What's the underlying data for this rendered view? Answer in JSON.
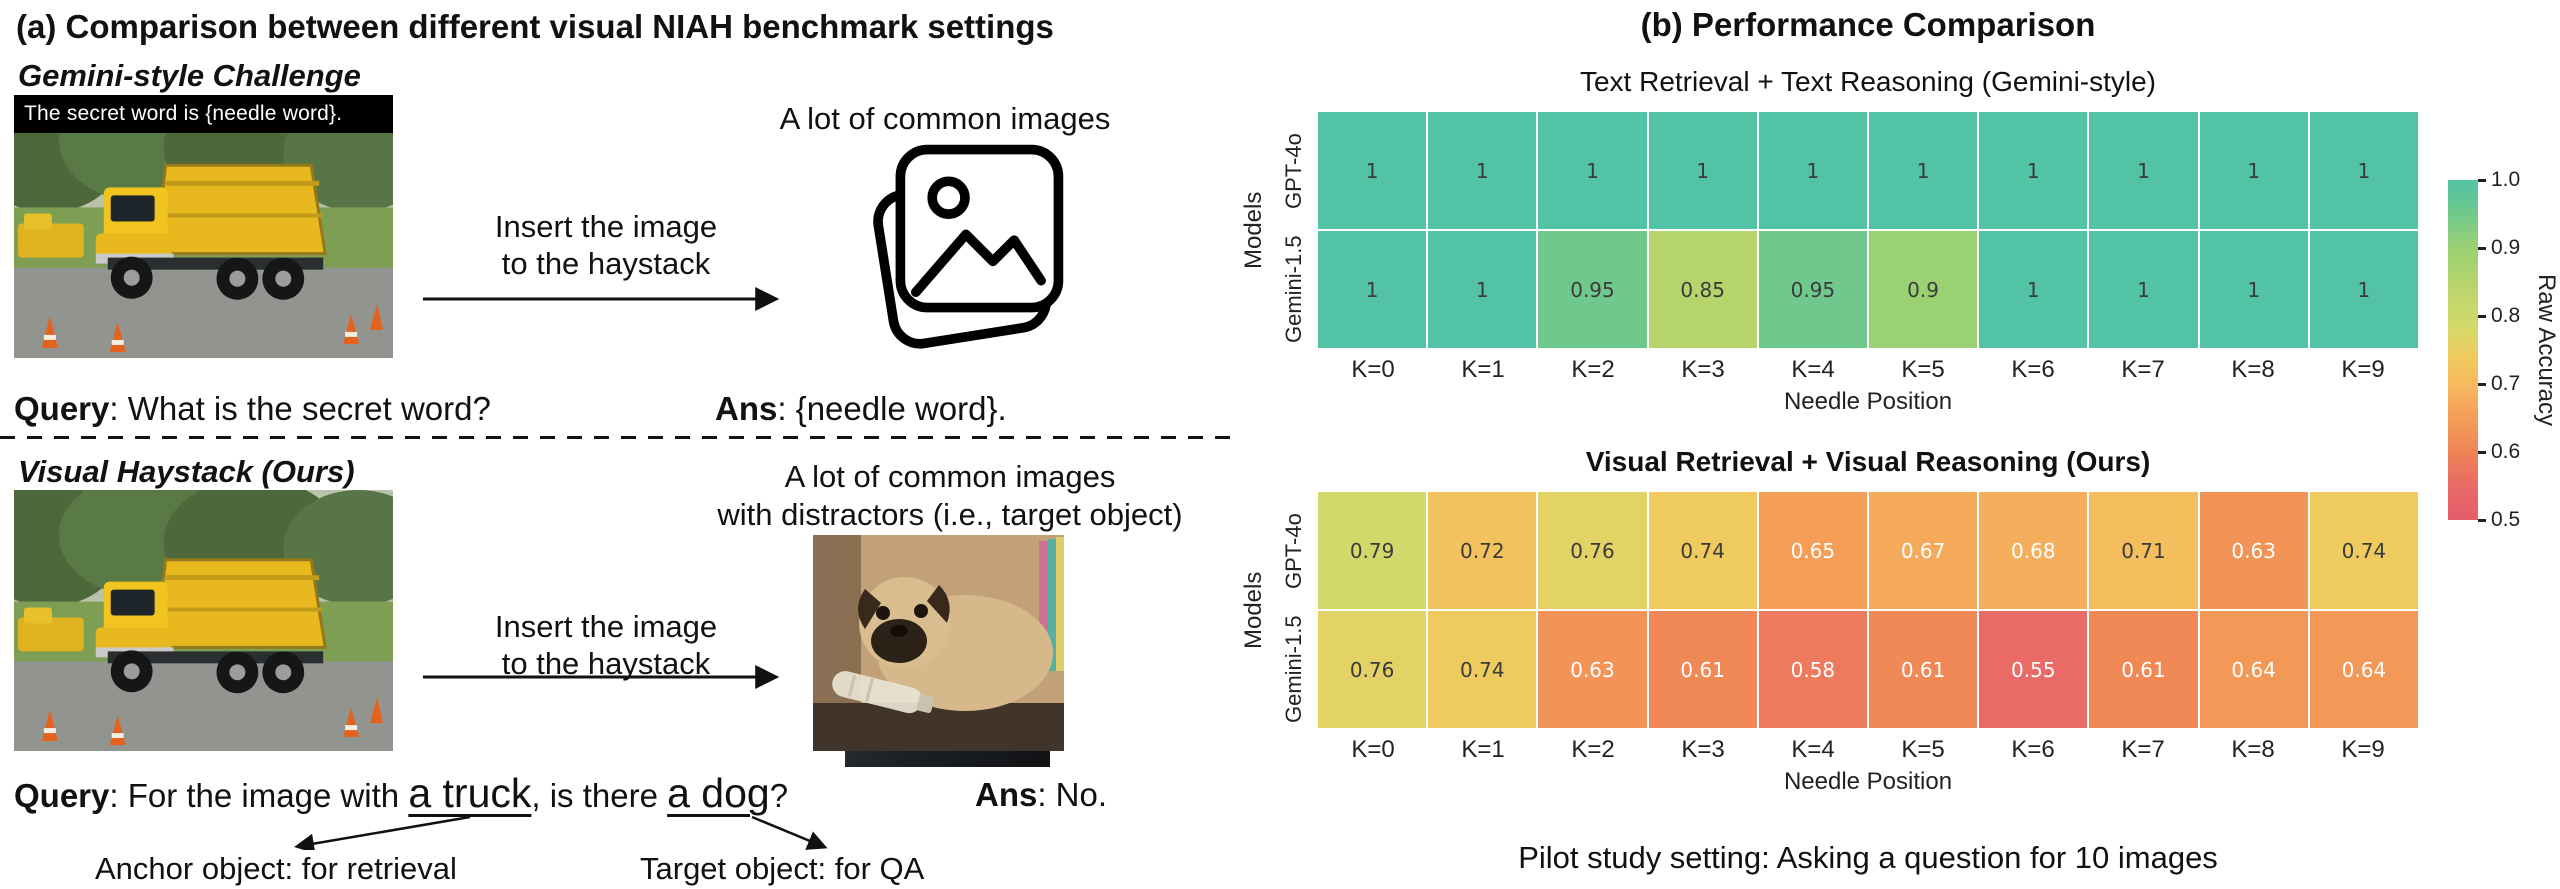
{
  "panel_a": {
    "title": "(a) Comparison between different visual NIAH benchmark settings",
    "gemini_challenge": {
      "heading": "Gemini-style Challenge",
      "needle_banner": "The secret word is {needle word}.",
      "arrow_label": [
        "Insert the image",
        "to the haystack"
      ],
      "haystack_caption": [
        "A lot of common images"
      ],
      "query_label": "Query",
      "query_text": ": What is the secret word?",
      "ans_label": "Ans",
      "ans_text": ": {needle word}."
    },
    "visual_haystack": {
      "heading": "Visual Haystack (Ours)",
      "arrow_label": [
        "Insert the image",
        "to the haystack"
      ],
      "haystack_caption": [
        "A lot of common images",
        "with distractors (i.e., target object)"
      ],
      "query_label": "Query",
      "query_parts": {
        "prefix": ": For the image with ",
        "anchor": "a truck",
        "middle": ", is there ",
        "target": "a dog",
        "suffix": "?"
      },
      "ans_label": "Ans",
      "ans_text": ": No.",
      "anchor_note": "Anchor object: for retrieval",
      "target_note": "Target object: for QA"
    }
  },
  "panel_b": {
    "title": "(b) Performance Comparison",
    "caption": "Pilot study setting: Asking a question for 10 images",
    "colorbar": {
      "label": "Raw Accuracy",
      "ticks": [
        "1.0",
        "0.9",
        "0.8",
        "0.7",
        "0.6",
        "0.5"
      ],
      "vmin": 0.5,
      "vmax": 1.0
    },
    "color_scale": [
      {
        "value": 0.5,
        "color": "#e35e6b"
      },
      {
        "value": 0.55,
        "color": "#e96a66"
      },
      {
        "value": 0.6,
        "color": "#ef8456"
      },
      {
        "value": 0.65,
        "color": "#f49e58"
      },
      {
        "value": 0.7,
        "color": "#f6ba5e"
      },
      {
        "value": 0.74,
        "color": "#eeca5f"
      },
      {
        "value": 0.78,
        "color": "#d7d96a"
      },
      {
        "value": 0.85,
        "color": "#b5d46c"
      },
      {
        "value": 0.9,
        "color": "#9ad173"
      },
      {
        "value": 0.95,
        "color": "#70c98c"
      },
      {
        "value": 1.0,
        "color": "#52c3a4"
      }
    ]
  },
  "chart_data": [
    {
      "type": "heatmap",
      "title": "Text Retrieval + Text Reasoning (Gemini-style)",
      "title_bold": false,
      "xlabel": "Needle Position",
      "ylabel": "Models",
      "x_categories": [
        "K=0",
        "K=1",
        "K=2",
        "K=3",
        "K=4",
        "K=5",
        "K=6",
        "K=7",
        "K=8",
        "K=9"
      ],
      "y_categories": [
        "GPT-4o",
        "Gemini-1.5"
      ],
      "series": [
        {
          "name": "GPT-4o",
          "values": [
            1,
            1,
            1,
            1,
            1,
            1,
            1,
            1,
            1,
            1
          ]
        },
        {
          "name": "Gemini-1.5",
          "values": [
            1,
            1,
            0.95,
            0.85,
            0.95,
            0.9,
            1,
            1,
            1,
            1
          ]
        }
      ],
      "vmin": 0.5,
      "vmax": 1.0,
      "colormap": "spectral-like",
      "legend_position": "right-colorbar"
    },
    {
      "type": "heatmap",
      "title": "Visual Retrieval + Visual Reasoning (Ours)",
      "title_bold": true,
      "xlabel": "Needle Position",
      "ylabel": "Models",
      "x_categories": [
        "K=0",
        "K=1",
        "K=2",
        "K=3",
        "K=4",
        "K=5",
        "K=6",
        "K=7",
        "K=8",
        "K=9"
      ],
      "y_categories": [
        "GPT-4o",
        "Gemini-1.5"
      ],
      "series": [
        {
          "name": "GPT-4o",
          "values": [
            0.79,
            0.72,
            0.76,
            0.74,
            0.65,
            0.67,
            0.68,
            0.71,
            0.63,
            0.74
          ]
        },
        {
          "name": "Gemini-1.5",
          "values": [
            0.76,
            0.74,
            0.63,
            0.61,
            0.58,
            0.61,
            0.55,
            0.61,
            0.64,
            0.64
          ]
        }
      ],
      "vmin": 0.5,
      "vmax": 1.0,
      "colormap": "spectral-like",
      "legend_position": "right-colorbar"
    }
  ]
}
